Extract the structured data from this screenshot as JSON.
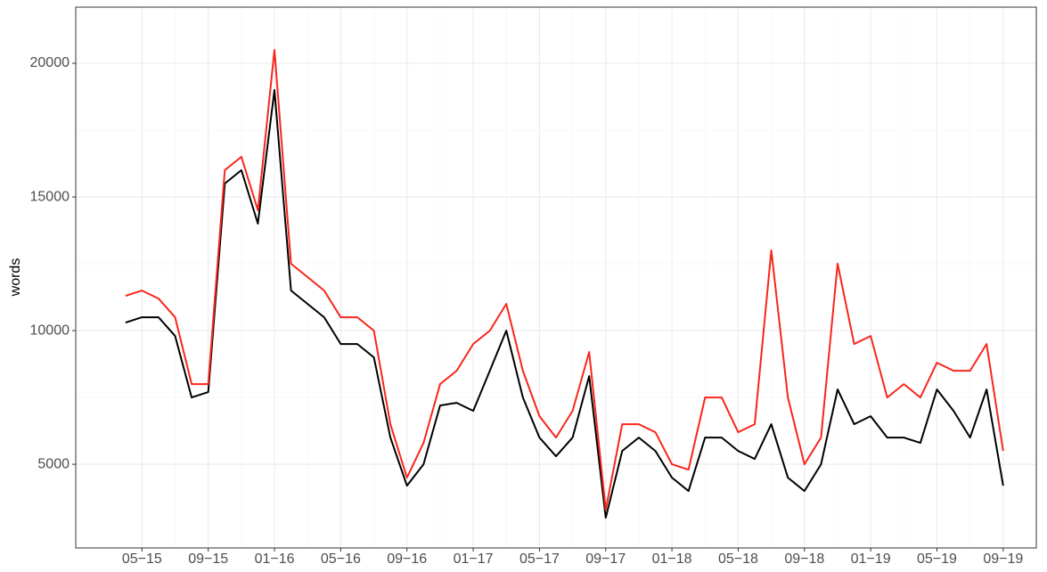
{
  "chart_data": {
    "type": "line",
    "y_label": "words",
    "x": [
      "2015-04",
      "2015-05",
      "2015-06",
      "2015-07",
      "2015-08",
      "2015-09",
      "2015-10",
      "2015-11",
      "2015-12",
      "2016-01",
      "2016-02",
      "2016-03",
      "2016-04",
      "2016-05",
      "2016-06",
      "2016-07",
      "2016-08",
      "2016-09",
      "2016-10",
      "2016-11",
      "2016-12",
      "2017-01",
      "2017-02",
      "2017-03",
      "2017-04",
      "2017-05",
      "2017-06",
      "2017-07",
      "2017-08",
      "2017-09",
      "2017-10",
      "2017-11",
      "2017-12",
      "2018-01",
      "2018-02",
      "2018-03",
      "2018-04",
      "2018-05",
      "2018-06",
      "2018-07",
      "2018-08",
      "2018-09",
      "2018-10",
      "2018-11",
      "2018-12",
      "2019-01",
      "2019-02",
      "2019-03",
      "2019-04",
      "2019-05",
      "2019-06",
      "2019-07",
      "2019-08",
      "2019-09"
    ],
    "series": [
      {
        "color": "#000000",
        "values": [
          10300,
          10500,
          10500,
          9800,
          7500,
          7700,
          15500,
          16000,
          14000,
          19000,
          11500,
          11000,
          10500,
          9500,
          9500,
          9000,
          6000,
          4200,
          5000,
          7200,
          7300,
          7000,
          8500,
          10000,
          7500,
          6000,
          5300,
          6000,
          8300,
          3000,
          5500,
          6000,
          5500,
          4500,
          4000,
          6000,
          6000,
          5500,
          5200,
          6500,
          4500,
          4000,
          5000,
          7800,
          6500,
          6800,
          6000,
          6000,
          5800,
          7800,
          7000,
          6000,
          7800,
          4200
        ]
      },
      {
        "color": "#f8261b",
        "values": [
          11300,
          11500,
          11200,
          10500,
          8000,
          8000,
          16000,
          16500,
          14500,
          20500,
          12500,
          12000,
          11500,
          10500,
          10500,
          10000,
          6500,
          4500,
          5800,
          8000,
          8500,
          9500,
          10000,
          11000,
          8500,
          6800,
          6000,
          7000,
          9200,
          3300,
          6500,
          6500,
          6200,
          5000,
          4800,
          7500,
          7500,
          6200,
          6500,
          13000,
          7500,
          5000,
          6000,
          12500,
          9500,
          9800,
          7500,
          8000,
          7500,
          8800,
          8500,
          8500,
          9500,
          5500
        ]
      }
    ],
    "xlim": [
      "2015-01",
      "2019-11"
    ],
    "xticks": [
      {
        "value": "2015-05",
        "label": "05−15"
      },
      {
        "value": "2015-09",
        "label": "09−15"
      },
      {
        "value": "2016-01",
        "label": "01−16"
      },
      {
        "value": "2016-05",
        "label": "05−16"
      },
      {
        "value": "2016-09",
        "label": "09−16"
      },
      {
        "value": "2017-01",
        "label": "01−17"
      },
      {
        "value": "2017-05",
        "label": "05−17"
      },
      {
        "value": "2017-09",
        "label": "09−17"
      },
      {
        "value": "2018-01",
        "label": "01−18"
      },
      {
        "value": "2018-05",
        "label": "05−18"
      },
      {
        "value": "2018-09",
        "label": "09−18"
      },
      {
        "value": "2019-01",
        "label": "01−19"
      },
      {
        "value": "2019-05",
        "label": "05−19"
      },
      {
        "value": "2019-09",
        "label": "09−19"
      }
    ],
    "ylim": [
      1870,
      22100
    ],
    "yticks": [
      5000,
      10000,
      15000,
      20000
    ],
    "grid": true
  }
}
